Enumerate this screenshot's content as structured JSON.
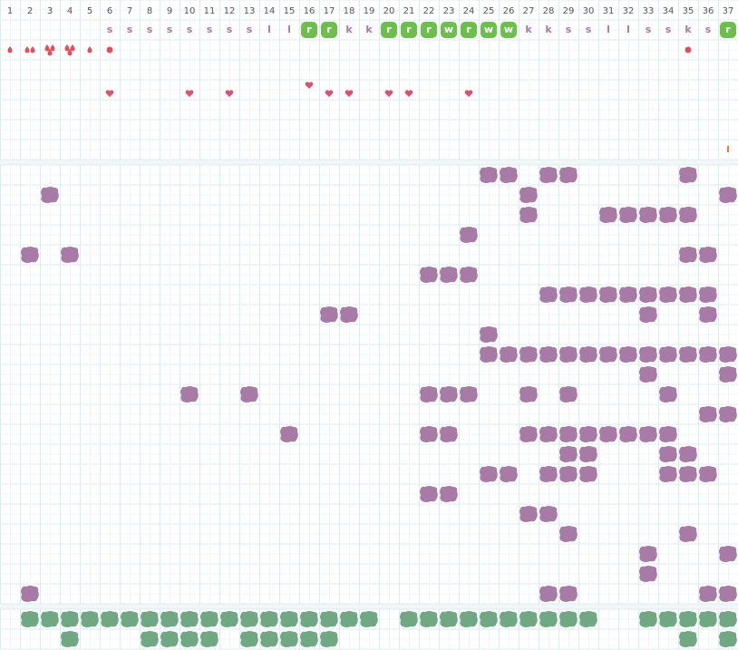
{
  "columns": [
    1,
    2,
    3,
    4,
    5,
    6,
    7,
    8,
    9,
    10,
    11,
    12,
    13,
    14,
    15,
    16,
    17,
    18,
    19,
    20,
    21,
    22,
    23,
    24,
    25,
    26,
    27,
    28,
    29,
    30,
    31,
    32,
    33,
    34,
    35,
    36,
    37
  ],
  "letters": [
    {
      "column": 6,
      "letter": "s",
      "highlight": false
    },
    {
      "column": 7,
      "letter": "s",
      "highlight": false
    },
    {
      "column": 8,
      "letter": "s",
      "highlight": false
    },
    {
      "column": 9,
      "letter": "s",
      "highlight": false
    },
    {
      "column": 10,
      "letter": "s",
      "highlight": false
    },
    {
      "column": 11,
      "letter": "s",
      "highlight": false
    },
    {
      "column": 12,
      "letter": "s",
      "highlight": false
    },
    {
      "column": 13,
      "letter": "s",
      "highlight": false
    },
    {
      "column": 14,
      "letter": "l",
      "highlight": false
    },
    {
      "column": 15,
      "letter": "l",
      "highlight": false
    },
    {
      "column": 16,
      "letter": "r",
      "highlight": true
    },
    {
      "column": 17,
      "letter": "r",
      "highlight": true
    },
    {
      "column": 18,
      "letter": "k",
      "highlight": false
    },
    {
      "column": 19,
      "letter": "k",
      "highlight": false
    },
    {
      "column": 20,
      "letter": "r",
      "highlight": true
    },
    {
      "column": 21,
      "letter": "r",
      "highlight": true
    },
    {
      "column": 22,
      "letter": "r",
      "highlight": true
    },
    {
      "column": 23,
      "letter": "w",
      "highlight": true
    },
    {
      "column": 24,
      "letter": "r",
      "highlight": true
    },
    {
      "column": 25,
      "letter": "w",
      "highlight": true
    },
    {
      "column": 26,
      "letter": "w",
      "highlight": true
    },
    {
      "column": 27,
      "letter": "k",
      "highlight": false
    },
    {
      "column": 28,
      "letter": "k",
      "highlight": false
    },
    {
      "column": 29,
      "letter": "s",
      "highlight": false
    },
    {
      "column": 30,
      "letter": "s",
      "highlight": false
    },
    {
      "column": 31,
      "letter": "l",
      "highlight": false
    },
    {
      "column": 32,
      "letter": "l",
      "highlight": false
    },
    {
      "column": 33,
      "letter": "s",
      "highlight": false
    },
    {
      "column": 34,
      "letter": "s",
      "highlight": false
    },
    {
      "column": 35,
      "letter": "k",
      "highlight": false
    },
    {
      "column": 36,
      "letter": "s",
      "highlight": false
    },
    {
      "column": 37,
      "letter": "r",
      "highlight": true
    }
  ],
  "drops": [
    {
      "column": 1,
      "count": 1
    },
    {
      "column": 2,
      "count": 2
    },
    {
      "column": 3,
      "count": 3
    },
    {
      "column": 4,
      "count": 3
    },
    {
      "column": 5,
      "count": 1
    },
    {
      "column": 6,
      "count": 0
    },
    {
      "column": 35,
      "count": 0
    }
  ],
  "hearts": [
    6,
    10,
    12,
    16,
    17,
    18,
    20,
    21,
    24
  ],
  "tick_column": 37,
  "purple_rows": [
    [
      25,
      26,
      28,
      29,
      35
    ],
    [
      3,
      27,
      37
    ],
    [
      27,
      31,
      32,
      33,
      34,
      35
    ],
    [
      24
    ],
    [
      2,
      4,
      35,
      36
    ],
    [
      22,
      23,
      24
    ],
    [
      28,
      29,
      30,
      31,
      32,
      33,
      34,
      35,
      36
    ],
    [
      17,
      18,
      33,
      36
    ],
    [
      25
    ],
    [
      25,
      26,
      27,
      28,
      29,
      30,
      31,
      32,
      33,
      34,
      35,
      36,
      37
    ],
    [
      33,
      37
    ],
    [
      10,
      13,
      22,
      23,
      24,
      27,
      29,
      34
    ],
    [
      36,
      37
    ],
    [
      15,
      22,
      23,
      27,
      28,
      29,
      30,
      31,
      32,
      33,
      34
    ],
    [
      29,
      30,
      34,
      35
    ],
    [
      25,
      26,
      28,
      29,
      30,
      34,
      35,
      36
    ],
    [
      22,
      23
    ],
    [
      27,
      28
    ],
    [
      29,
      35
    ],
    [
      33,
      37
    ],
    [
      33
    ],
    [
      2,
      28,
      29,
      36,
      37
    ]
  ],
  "green_rows": [
    [
      2,
      3,
      4,
      5,
      6,
      7,
      8,
      9,
      10,
      11,
      12,
      13,
      14,
      15,
      16,
      17,
      18,
      19,
      21,
      22,
      23,
      24,
      25,
      26,
      27,
      28,
      29,
      30,
      33,
      34,
      35,
      36,
      37
    ],
    [
      4,
      8,
      9,
      10,
      11,
      13,
      14,
      15,
      16,
      17,
      35,
      37
    ]
  ]
}
